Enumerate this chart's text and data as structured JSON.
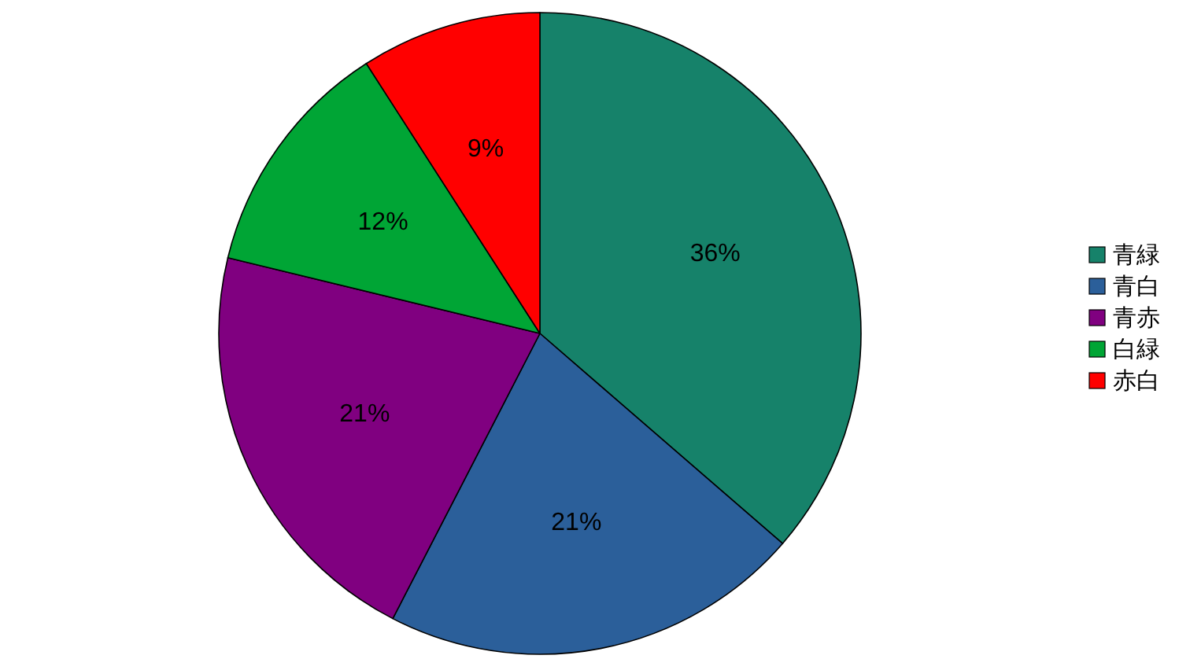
{
  "chart_data": {
    "type": "pie",
    "categories": [
      "青緑",
      "青白",
      "青赤",
      "白緑",
      "赤白"
    ],
    "values": [
      36,
      21,
      21,
      12,
      9
    ],
    "colors": [
      "#16826a",
      "#2b5f9a",
      "#800080",
      "#00a535",
      "#ff0000"
    ],
    "value_labels": [
      "36%",
      "21%",
      "21%",
      "12%",
      "9%"
    ],
    "legend": "right"
  }
}
